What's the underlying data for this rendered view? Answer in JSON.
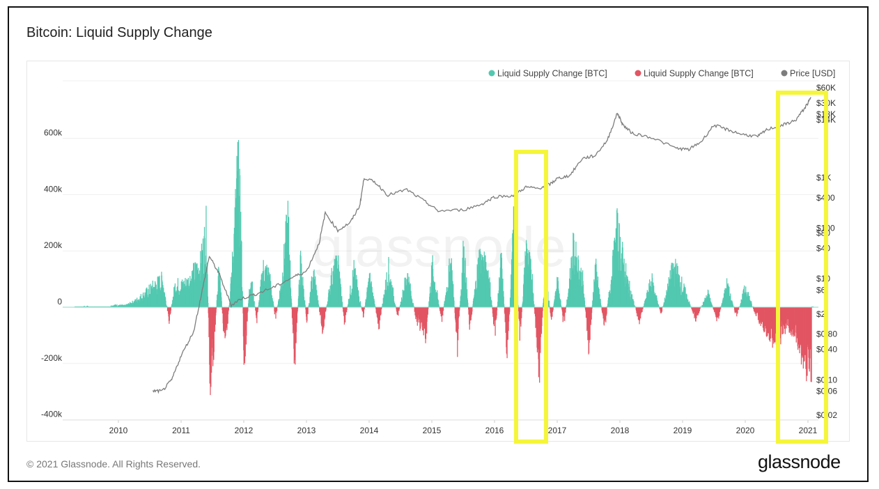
{
  "header": {
    "title": "Bitcoin: Liquid Supply Change"
  },
  "footer": {
    "copyright": "© 2021 Glassnode. All Rights Reserved.",
    "brand": "glassnode"
  },
  "watermark": "glassnode",
  "colors": {
    "positive": "#52c8b0",
    "negative": "#e25563",
    "price": "#7d7d7d",
    "highlight": "#f5f53a"
  },
  "chart_data": {
    "type": "bar",
    "title": "Bitcoin: Liquid Supply Change",
    "legend": [
      {
        "name": "Liquid Supply Change [BTC]",
        "color": "#52c8b0"
      },
      {
        "name": "Liquid Supply Change [BTC]",
        "color": "#e25563"
      },
      {
        "name": "Price [USD]",
        "color": "#7d7d7d"
      }
    ],
    "legend_position": "top-right",
    "x_ticks": [
      "2010",
      "2011",
      "2012",
      "2013",
      "2014",
      "2015",
      "2016",
      "2017",
      "2018",
      "2019",
      "2020",
      "2021"
    ],
    "y_ticks": [
      {
        "value": 600000,
        "label": "600k"
      },
      {
        "value": 400000,
        "label": "400k"
      },
      {
        "value": 200000,
        "label": "200k"
      },
      {
        "value": 0,
        "label": "0"
      },
      {
        "value": -200000,
        "label": "-200k"
      },
      {
        "value": -400000,
        "label": "-400k"
      }
    ],
    "ylim": [
      -400000,
      600000
    ],
    "right_axis_scale": "log",
    "right_ticks": [
      "$60K",
      "$30K",
      "$18K",
      "$14K",
      "$1K",
      "$400",
      "$100",
      "$80",
      "$40",
      "$10",
      "$6",
      "$2",
      "$0.80",
      "$0.40",
      "$0.10",
      "$0.06",
      "$0.02"
    ],
    "right_tick_values": [
      60000,
      30000,
      18000,
      14000,
      1000,
      400,
      100,
      80,
      40,
      10,
      6,
      2,
      0.8,
      0.4,
      0.1,
      0.06,
      0.02
    ],
    "grid": true,
    "liquid_supply_change": [
      [
        2009.3,
        4000
      ],
      [
        2009.5,
        5000
      ],
      [
        2009.8,
        3000
      ],
      [
        2009.95,
        10000
      ],
      [
        2010.1,
        8000
      ],
      [
        2010.25,
        25000
      ],
      [
        2010.4,
        55000
      ],
      [
        2010.55,
        90000
      ],
      [
        2010.7,
        120000
      ],
      [
        2010.8,
        -60000
      ],
      [
        2010.9,
        100000
      ],
      [
        2011.0,
        95000
      ],
      [
        2011.1,
        110000
      ],
      [
        2011.2,
        150000
      ],
      [
        2011.3,
        180000
      ],
      [
        2011.4,
        340000
      ],
      [
        2011.45,
        -310000
      ],
      [
        2011.5,
        -230000
      ],
      [
        2011.6,
        170000
      ],
      [
        2011.7,
        -200000
      ],
      [
        2011.8,
        140000
      ],
      [
        2011.9,
        600000
      ],
      [
        2011.95,
        340000
      ],
      [
        2012.0,
        -270000
      ],
      [
        2012.1,
        150000
      ],
      [
        2012.2,
        -60000
      ],
      [
        2012.3,
        170000
      ],
      [
        2012.4,
        140000
      ],
      [
        2012.5,
        -50000
      ],
      [
        2012.6,
        120000
      ],
      [
        2012.7,
        380000
      ],
      [
        2012.8,
        -260000
      ],
      [
        2012.9,
        200000
      ],
      [
        2013.0,
        -60000
      ],
      [
        2013.1,
        160000
      ],
      [
        2013.25,
        -100000
      ],
      [
        2013.4,
        140000
      ],
      [
        2013.5,
        190000
      ],
      [
        2013.6,
        -70000
      ],
      [
        2013.75,
        160000
      ],
      [
        2013.9,
        -40000
      ],
      [
        2014.0,
        130000
      ],
      [
        2014.15,
        -80000
      ],
      [
        2014.3,
        170000
      ],
      [
        2014.45,
        -40000
      ],
      [
        2014.6,
        150000
      ],
      [
        2014.75,
        -60000
      ],
      [
        2014.9,
        -120000
      ],
      [
        2015.0,
        180000
      ],
      [
        2015.15,
        -60000
      ],
      [
        2015.3,
        210000
      ],
      [
        2015.4,
        -170000
      ],
      [
        2015.5,
        260000
      ],
      [
        2015.6,
        -90000
      ],
      [
        2015.75,
        220000
      ],
      [
        2015.9,
        150000
      ],
      [
        2016.0,
        -120000
      ],
      [
        2016.1,
        210000
      ],
      [
        2016.2,
        -220000
      ],
      [
        2016.3,
        360000
      ],
      [
        2016.4,
        -130000
      ],
      [
        2016.5,
        260000
      ],
      [
        2016.6,
        120000
      ],
      [
        2016.7,
        -300000
      ],
      [
        2016.8,
        170000
      ],
      [
        2016.9,
        -60000
      ],
      [
        2017.0,
        120000
      ],
      [
        2017.1,
        -80000
      ],
      [
        2017.25,
        250000
      ],
      [
        2017.4,
        120000
      ],
      [
        2017.5,
        -190000
      ],
      [
        2017.6,
        180000
      ],
      [
        2017.75,
        -90000
      ],
      [
        2017.95,
        330000
      ],
      [
        2018.1,
        130000
      ],
      [
        2018.3,
        -60000
      ],
      [
        2018.5,
        120000
      ],
      [
        2018.65,
        -30000
      ],
      [
        2018.85,
        180000
      ],
      [
        2019.0,
        90000
      ],
      [
        2019.2,
        -50000
      ],
      [
        2019.4,
        60000
      ],
      [
        2019.55,
        -60000
      ],
      [
        2019.7,
        100000
      ],
      [
        2019.85,
        -40000
      ],
      [
        2020.0,
        90000
      ],
      [
        2020.15,
        -30000
      ],
      [
        2020.35,
        -110000
      ],
      [
        2020.5,
        -150000
      ],
      [
        2020.65,
        -80000
      ],
      [
        2020.8,
        -120000
      ],
      [
        2020.95,
        -240000
      ],
      [
        2021.05,
        -260000
      ]
    ],
    "price_usd": [
      [
        2010.55,
        0.06
      ],
      [
        2010.7,
        0.06
      ],
      [
        2010.85,
        0.1
      ],
      [
        2011.0,
        0.3
      ],
      [
        2011.2,
        0.9
      ],
      [
        2011.35,
        7
      ],
      [
        2011.45,
        28
      ],
      [
        2011.6,
        13
      ],
      [
        2011.8,
        3
      ],
      [
        2011.95,
        4
      ],
      [
        2012.2,
        5
      ],
      [
        2012.5,
        7
      ],
      [
        2012.8,
        11
      ],
      [
        2013.0,
        14
      ],
      [
        2013.2,
        50
      ],
      [
        2013.3,
        200
      ],
      [
        2013.5,
        90
      ],
      [
        2013.7,
        130
      ],
      [
        2013.85,
        280
      ],
      [
        2013.92,
        1000
      ],
      [
        2014.1,
        800
      ],
      [
        2014.3,
        450
      ],
      [
        2014.6,
        580
      ],
      [
        2014.9,
        330
      ],
      [
        2015.1,
        220
      ],
      [
        2015.5,
        230
      ],
      [
        2015.8,
        300
      ],
      [
        2016.0,
        420
      ],
      [
        2016.3,
        440
      ],
      [
        2016.5,
        650
      ],
      [
        2016.7,
        610
      ],
      [
        2016.9,
        760
      ],
      [
        2017.0,
        960
      ],
      [
        2017.2,
        1100
      ],
      [
        2017.4,
        2400
      ],
      [
        2017.6,
        2700
      ],
      [
        2017.8,
        5500
      ],
      [
        2017.96,
        19000
      ],
      [
        2018.05,
        11000
      ],
      [
        2018.2,
        7500
      ],
      [
        2018.5,
        6300
      ],
      [
        2018.9,
        3800
      ],
      [
        2019.1,
        3600
      ],
      [
        2019.3,
        5200
      ],
      [
        2019.5,
        11000
      ],
      [
        2019.7,
        9000
      ],
      [
        2019.95,
        7200
      ],
      [
        2020.2,
        6500
      ],
      [
        2020.35,
        9000
      ],
      [
        2020.6,
        11000
      ],
      [
        2020.8,
        13500
      ],
      [
        2020.95,
        24000
      ],
      [
        2021.05,
        38000
      ]
    ]
  }
}
